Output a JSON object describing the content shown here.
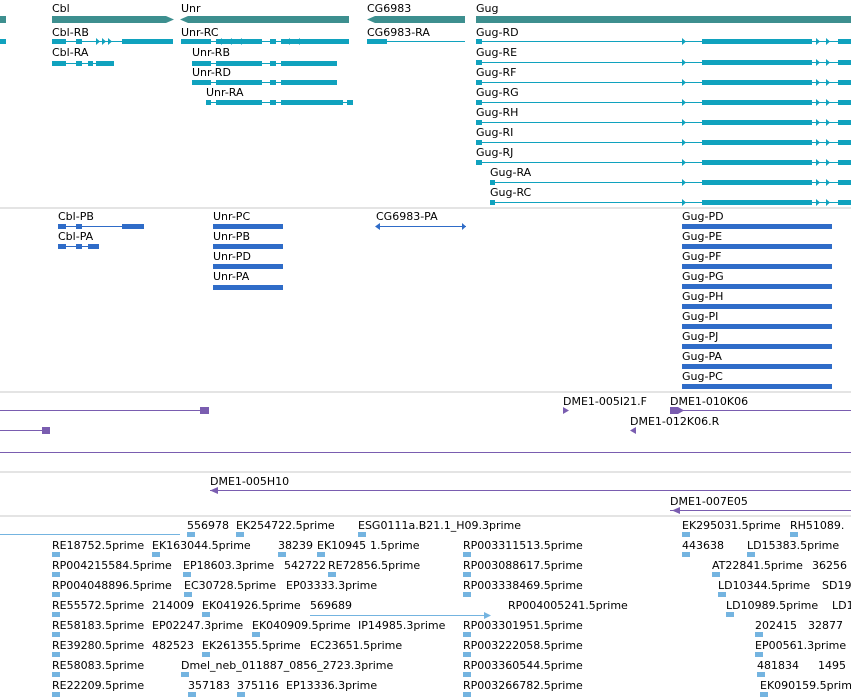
{
  "genes": [
    {
      "label": "Cbl"
    },
    {
      "label": "Unr"
    },
    {
      "label": "CG6983"
    },
    {
      "label": "Gug"
    }
  ],
  "transcripts": [
    {
      "label": "Cbl-RB"
    },
    {
      "label": "Cbl-RA"
    },
    {
      "label": "Unr-RC"
    },
    {
      "label": "Unr-RB"
    },
    {
      "label": "Unr-RD"
    },
    {
      "label": "Unr-RA"
    },
    {
      "label": "CG6983-RA"
    },
    {
      "label": "Gug-RD"
    },
    {
      "label": "Gug-RE"
    },
    {
      "label": "Gug-RF"
    },
    {
      "label": "Gug-RG"
    },
    {
      "label": "Gug-RH"
    },
    {
      "label": "Gug-RI"
    },
    {
      "label": "Gug-RJ"
    },
    {
      "label": "Gug-RA"
    },
    {
      "label": "Gug-RC"
    }
  ],
  "proteins": [
    {
      "label": "Cbl-PB"
    },
    {
      "label": "Cbl-PA"
    },
    {
      "label": "Unr-PC"
    },
    {
      "label": "Unr-PB"
    },
    {
      "label": "Unr-PD"
    },
    {
      "label": "Unr-PA"
    },
    {
      "label": "CG6983-PA"
    },
    {
      "label": "Gug-PD"
    },
    {
      "label": "Gug-PE"
    },
    {
      "label": "Gug-PF"
    },
    {
      "label": "Gug-PG"
    },
    {
      "label": "Gug-PH"
    },
    {
      "label": "Gug-PI"
    },
    {
      "label": "Gug-PJ"
    },
    {
      "label": "Gug-PA"
    },
    {
      "label": "Gug-PC"
    }
  ],
  "clones": [
    {
      "label": "DME1-005I21.F"
    },
    {
      "label": "DME1-010K06"
    },
    {
      "label": "DME1-012K06.R"
    },
    {
      "label": "DME1-005H10"
    },
    {
      "label": "DME1-007E05"
    }
  ],
  "ests": [
    {
      "label": "556978"
    },
    {
      "label": "EK254722.5prime"
    },
    {
      "label": "ESG0111a.B21.1_H09.3prime"
    },
    {
      "label": "EK295031.5prime"
    },
    {
      "label": "RH51089."
    },
    {
      "label": "RE18752.5prime"
    },
    {
      "label": "EK163044.5prime"
    },
    {
      "label": "38239"
    },
    {
      "label": "EK10945"
    },
    {
      "label": "1.5prime"
    },
    {
      "label": "RP003311513.5prime"
    },
    {
      "label": "443638"
    },
    {
      "label": "LD15383.5prime"
    },
    {
      "label": "RP004215584.5prime"
    },
    {
      "label": "EP18603.3prime"
    },
    {
      "label": "542722"
    },
    {
      "label": "RE72856.5prime"
    },
    {
      "label": "RP003088617.5prime"
    },
    {
      "label": "AT22841.5prime"
    },
    {
      "label": "36256"
    },
    {
      "label": "RP004048896.5prime"
    },
    {
      "label": "EC30728.5prime"
    },
    {
      "label": "EP03333.3prime"
    },
    {
      "label": "RP003338469.5prime"
    },
    {
      "label": "LD10344.5prime"
    },
    {
      "label": "SD19"
    },
    {
      "label": "RE55572.5prime"
    },
    {
      "label": "214009"
    },
    {
      "label": "EK041926.5prime"
    },
    {
      "label": "569689"
    },
    {
      "label": "RP004005241.5prime"
    },
    {
      "label": "LD10989.5prime"
    },
    {
      "label": "LD1"
    },
    {
      "label": "RE58183.5prime"
    },
    {
      "label": "EP02247.3prime"
    },
    {
      "label": "EK040909.5prime"
    },
    {
      "label": "IP14985.3prime"
    },
    {
      "label": "RP003301951.5prime"
    },
    {
      "label": "202415"
    },
    {
      "label": "32877"
    },
    {
      "label": "RE39280.5prime"
    },
    {
      "label": "482523"
    },
    {
      "label": "EK261355.5prime"
    },
    {
      "label": "EC23651.5prime"
    },
    {
      "label": "RP003222058.5prime"
    },
    {
      "label": "EP00561.3prime"
    },
    {
      "label": "RE58083.5prime"
    },
    {
      "label": "Dmel_neb_011887_0856_2723.3prime"
    },
    {
      "label": "RP003360544.5prime"
    },
    {
      "label": "481834"
    },
    {
      "label": "1495"
    },
    {
      "label": "RE22209.5prime"
    },
    {
      "label": "357183"
    },
    {
      "label": "375116"
    },
    {
      "label": "EP13336.3prime"
    },
    {
      "label": "RP003266782.5prime"
    },
    {
      "label": "EK090159.5prime"
    }
  ],
  "colors": {
    "gene": "#3d8f8f",
    "transcript": "#10a2be",
    "protein": "#2f6cc8",
    "clone": "#7a5db0",
    "est": "#74b4e0",
    "divider": "#c8c8c8"
  }
}
